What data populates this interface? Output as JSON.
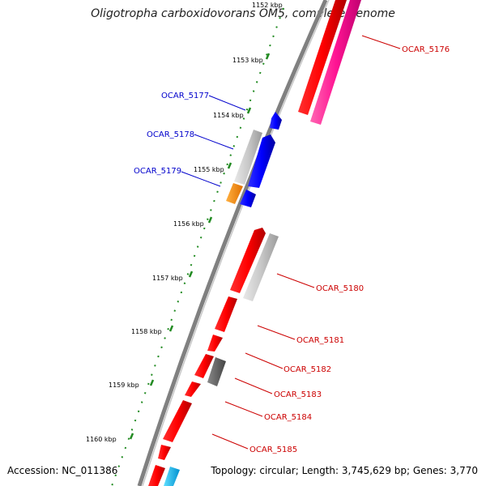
{
  "title": "Oligotropha carboxidovorans OM5, complete genome",
  "footer": {
    "accession": "Accession: NC_011386",
    "summary": "Topology: circular; Length: 3,745,629 bp; Genes: 3,770"
  },
  "ruler": [
    {
      "label": "1152 kbp"
    },
    {
      "label": "1153 kbp"
    },
    {
      "label": "1154 kbp"
    },
    {
      "label": "1155 kbp"
    },
    {
      "label": "1156 kbp"
    },
    {
      "label": "1157 kbp"
    },
    {
      "label": "1158 kbp"
    },
    {
      "label": "1159 kbp"
    },
    {
      "label": "1160 kbp"
    }
  ],
  "gene_labels": [
    {
      "text": "OCAR_5176",
      "color": "#cc0000"
    },
    {
      "text": "OCAR_5177",
      "color": "#0000cc"
    },
    {
      "text": "OCAR_5178",
      "color": "#0000cc"
    },
    {
      "text": "OCAR_5179",
      "color": "#0000cc"
    },
    {
      "text": "OCAR_5180",
      "color": "#cc0000"
    },
    {
      "text": "OCAR_5181",
      "color": "#cc0000"
    },
    {
      "text": "OCAR_5182",
      "color": "#cc0000"
    },
    {
      "text": "OCAR_5183",
      "color": "#cc0000"
    },
    {
      "text": "OCAR_5184",
      "color": "#cc0000"
    },
    {
      "text": "OCAR_5185",
      "color": "#cc0000"
    }
  ],
  "colors": {
    "forward_cds": "#ff0000",
    "reverse_cds": "#0000ff",
    "pseudo": "#c0c0c0",
    "dark_gene": "#666666",
    "magenta_gene": "#ff1493",
    "orange_gene": "#ff8c00",
    "cyan_gene": "#00bfff",
    "backbone": "#808080",
    "tick_green": "#228b22"
  }
}
